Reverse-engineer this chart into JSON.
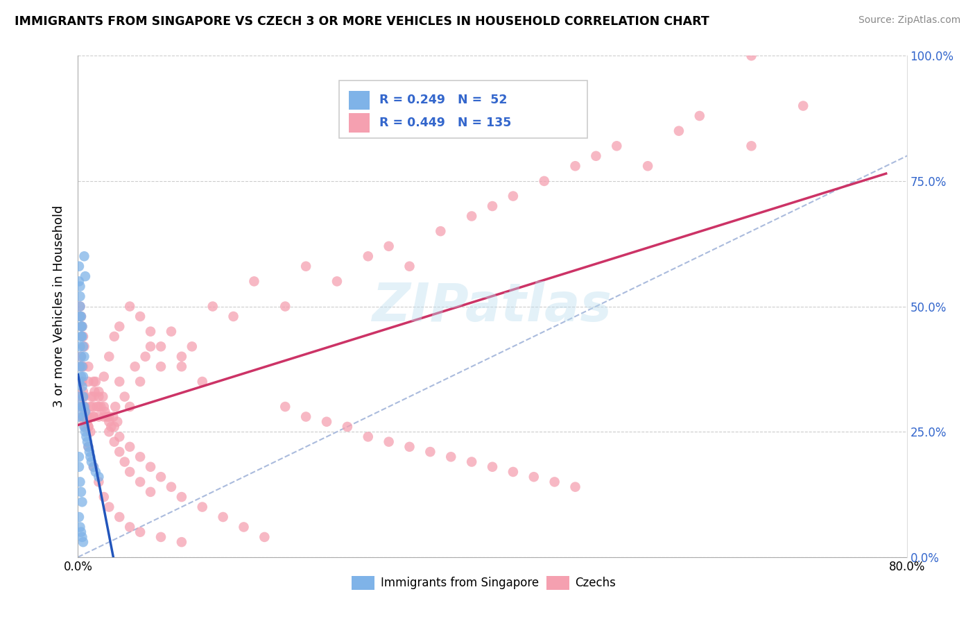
{
  "title": "IMMIGRANTS FROM SINGAPORE VS CZECH 3 OR MORE VEHICLES IN HOUSEHOLD CORRELATION CHART",
  "source": "Source: ZipAtlas.com",
  "ylabel": "3 or more Vehicles in Household",
  "xlim": [
    0.0,
    0.8
  ],
  "ylim": [
    0.0,
    1.0
  ],
  "xticks": [
    0.0,
    0.2,
    0.4,
    0.6,
    0.8
  ],
  "xtick_labels": [
    "0.0%",
    "",
    "",
    "",
    "80.0%"
  ],
  "ytick_labels_right": [
    "0.0%",
    "25.0%",
    "50.0%",
    "75.0%",
    "100.0%"
  ],
  "yticks": [
    0.0,
    0.25,
    0.5,
    0.75,
    1.0
  ],
  "singapore_color": "#7fb3e8",
  "czech_color": "#f5a0b0",
  "singapore_line_color": "#2255bb",
  "czech_line_color": "#cc3366",
  "watermark": "ZIPatlas",
  "legend_label1": "Immigrants from Singapore",
  "legend_label2": "Czechs",
  "singapore_x": [
    0.001,
    0.001,
    0.001,
    0.001,
    0.002,
    0.002,
    0.002,
    0.002,
    0.003,
    0.003,
    0.003,
    0.004,
    0.004,
    0.004,
    0.005,
    0.005,
    0.005,
    0.006,
    0.006,
    0.007,
    0.007,
    0.008,
    0.009,
    0.01,
    0.011,
    0.012,
    0.013,
    0.015,
    0.017,
    0.02,
    0.001,
    0.001,
    0.002,
    0.002,
    0.003,
    0.003,
    0.004,
    0.004,
    0.005,
    0.006,
    0.001,
    0.001,
    0.002,
    0.003,
    0.004,
    0.001,
    0.002,
    0.003,
    0.004,
    0.005,
    0.006,
    0.007
  ],
  "singapore_y": [
    0.32,
    0.35,
    0.28,
    0.3,
    0.38,
    0.42,
    0.48,
    0.52,
    0.36,
    0.4,
    0.44,
    0.3,
    0.34,
    0.38,
    0.28,
    0.32,
    0.36,
    0.26,
    0.3,
    0.25,
    0.29,
    0.24,
    0.23,
    0.22,
    0.21,
    0.2,
    0.19,
    0.18,
    0.17,
    0.16,
    0.55,
    0.58,
    0.5,
    0.54,
    0.46,
    0.48,
    0.44,
    0.46,
    0.42,
    0.4,
    0.2,
    0.18,
    0.15,
    0.13,
    0.11,
    0.08,
    0.06,
    0.05,
    0.04,
    0.03,
    0.6,
    0.56
  ],
  "czech_x": [
    0.002,
    0.003,
    0.004,
    0.005,
    0.006,
    0.007,
    0.008,
    0.009,
    0.01,
    0.011,
    0.012,
    0.013,
    0.014,
    0.015,
    0.016,
    0.017,
    0.018,
    0.02,
    0.022,
    0.024,
    0.026,
    0.028,
    0.03,
    0.032,
    0.034,
    0.036,
    0.038,
    0.04,
    0.045,
    0.05,
    0.055,
    0.06,
    0.065,
    0.07,
    0.08,
    0.09,
    0.1,
    0.11,
    0.13,
    0.15,
    0.17,
    0.2,
    0.22,
    0.25,
    0.28,
    0.3,
    0.32,
    0.35,
    0.38,
    0.4,
    0.42,
    0.45,
    0.48,
    0.5,
    0.52,
    0.55,
    0.58,
    0.6,
    0.65,
    0.7,
    0.003,
    0.004,
    0.005,
    0.006,
    0.007,
    0.008,
    0.01,
    0.012,
    0.015,
    0.02,
    0.025,
    0.03,
    0.035,
    0.04,
    0.05,
    0.06,
    0.07,
    0.08,
    0.1,
    0.12,
    0.003,
    0.004,
    0.005,
    0.007,
    0.01,
    0.015,
    0.02,
    0.025,
    0.03,
    0.04,
    0.05,
    0.06,
    0.08,
    0.1,
    0.003,
    0.005,
    0.01,
    0.015,
    0.02,
    0.025,
    0.03,
    0.035,
    0.04,
    0.045,
    0.05,
    0.06,
    0.07,
    0.65,
    0.002,
    0.003,
    0.004,
    0.005,
    0.006,
    0.01,
    0.015,
    0.02,
    0.025,
    0.03,
    0.035,
    0.04,
    0.05,
    0.06,
    0.07,
    0.08,
    0.09,
    0.1,
    0.12,
    0.14,
    0.16,
    0.18,
    0.2,
    0.22,
    0.24,
    0.26,
    0.28,
    0.3,
    0.32,
    0.34,
    0.36,
    0.38,
    0.4,
    0.42,
    0.44,
    0.46,
    0.48
  ],
  "czech_y": [
    0.3,
    0.32,
    0.28,
    0.3,
    0.27,
    0.29,
    0.28,
    0.27,
    0.26,
    0.28,
    0.3,
    0.32,
    0.3,
    0.28,
    0.33,
    0.35,
    0.3,
    0.28,
    0.3,
    0.32,
    0.29,
    0.28,
    0.27,
    0.26,
    0.28,
    0.3,
    0.27,
    0.35,
    0.32,
    0.3,
    0.38,
    0.35,
    0.4,
    0.42,
    0.38,
    0.45,
    0.4,
    0.42,
    0.5,
    0.48,
    0.55,
    0.5,
    0.58,
    0.55,
    0.6,
    0.62,
    0.58,
    0.65,
    0.68,
    0.7,
    0.72,
    0.75,
    0.78,
    0.8,
    0.82,
    0.78,
    0.85,
    0.88,
    0.82,
    0.9,
    0.38,
    0.35,
    0.33,
    0.32,
    0.3,
    0.28,
    0.26,
    0.25,
    0.28,
    0.32,
    0.36,
    0.4,
    0.44,
    0.46,
    0.5,
    0.48,
    0.45,
    0.42,
    0.38,
    0.35,
    0.35,
    0.32,
    0.3,
    0.26,
    0.22,
    0.18,
    0.15,
    0.12,
    0.1,
    0.08,
    0.06,
    0.05,
    0.04,
    0.03,
    0.4,
    0.38,
    0.35,
    0.32,
    0.3,
    0.28,
    0.25,
    0.23,
    0.21,
    0.19,
    0.17,
    0.15,
    0.13,
    1.0,
    0.5,
    0.48,
    0.46,
    0.44,
    0.42,
    0.38,
    0.35,
    0.33,
    0.3,
    0.28,
    0.26,
    0.24,
    0.22,
    0.2,
    0.18,
    0.16,
    0.14,
    0.12,
    0.1,
    0.08,
    0.06,
    0.04,
    0.3,
    0.28,
    0.27,
    0.26,
    0.24,
    0.23,
    0.22,
    0.21,
    0.2,
    0.19,
    0.18,
    0.17,
    0.16,
    0.15,
    0.14
  ]
}
